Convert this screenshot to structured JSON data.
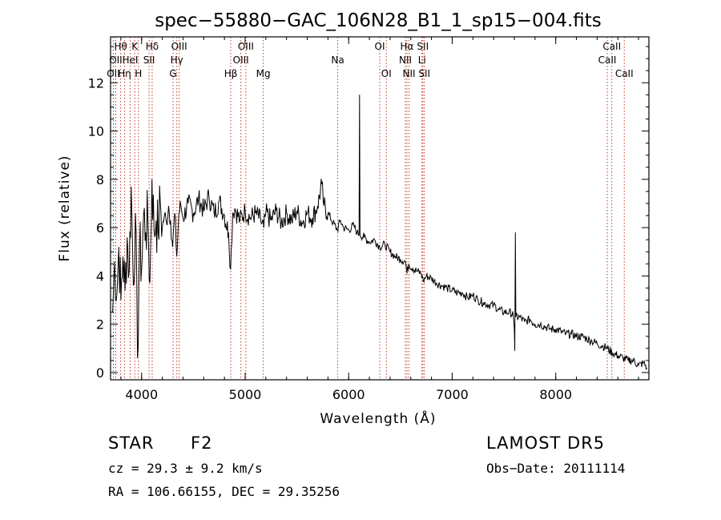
{
  "chart_data": {
    "type": "line",
    "title": "spec−55880−GAC_106N28_B1_1_sp15−004.fits",
    "xlabel": "Wavelength (Å)",
    "ylabel": "Flux (relative)",
    "xlim": [
      3700,
      8900
    ],
    "ylim": [
      -0.3,
      13.9
    ],
    "xticks": [
      4000,
      5000,
      6000,
      7000,
      8000
    ],
    "yticks": [
      0,
      2,
      4,
      6,
      8,
      10,
      12
    ],
    "series": [
      {
        "values_from": "wavelength",
        "points": [
          [
            3720,
            2.5
          ],
          [
            3740,
            4.6
          ],
          [
            3760,
            3.2
          ],
          [
            3780,
            5.2
          ],
          [
            3800,
            3.0
          ],
          [
            3820,
            4.8
          ],
          [
            3840,
            3.4
          ],
          [
            3860,
            5.6
          ],
          [
            3880,
            4.2
          ],
          [
            3900,
            7.7
          ],
          [
            3920,
            3.6
          ],
          [
            3940,
            6.6
          ],
          [
            3960,
            0.6
          ],
          [
            3980,
            5.3
          ],
          [
            4000,
            4.3
          ],
          [
            4020,
            6.6
          ],
          [
            4040,
            5.8
          ],
          [
            4060,
            6.4
          ],
          [
            4080,
            3.7
          ],
          [
            4100,
            8.0
          ],
          [
            4120,
            5.9
          ],
          [
            4140,
            6.3
          ],
          [
            4160,
            5.8
          ],
          [
            4180,
            7.1
          ],
          [
            4200,
            6.0
          ],
          [
            4220,
            6.5
          ],
          [
            4240,
            6.2
          ],
          [
            4260,
            6.9
          ],
          [
            4280,
            6.3
          ],
          [
            4300,
            5.2
          ],
          [
            4320,
            6.6
          ],
          [
            4340,
            4.8
          ],
          [
            4360,
            6.6
          ],
          [
            4380,
            6.9
          ],
          [
            4400,
            6.4
          ],
          [
            4450,
            7.0
          ],
          [
            4500,
            6.6
          ],
          [
            4550,
            7.2
          ],
          [
            4600,
            6.7
          ],
          [
            4650,
            7.3
          ],
          [
            4700,
            6.6
          ],
          [
            4750,
            7.1
          ],
          [
            4800,
            6.5
          ],
          [
            4840,
            5.8
          ],
          [
            4860,
            4.3
          ],
          [
            4880,
            6.6
          ],
          [
            4900,
            6.8
          ],
          [
            4950,
            6.3
          ],
          [
            5000,
            6.7
          ],
          [
            5050,
            6.4
          ],
          [
            5100,
            6.6
          ],
          [
            5150,
            6.3
          ],
          [
            5180,
            6.0
          ],
          [
            5200,
            6.6
          ],
          [
            5250,
            6.3
          ],
          [
            5300,
            6.7
          ],
          [
            5350,
            6.2
          ],
          [
            5400,
            6.6
          ],
          [
            5450,
            6.3
          ],
          [
            5500,
            6.7
          ],
          [
            5550,
            6.2
          ],
          [
            5600,
            6.6
          ],
          [
            5650,
            6.4
          ],
          [
            5700,
            6.9
          ],
          [
            5740,
            7.8
          ],
          [
            5760,
            6.9
          ],
          [
            5800,
            6.6
          ],
          [
            5850,
            6.2
          ],
          [
            5890,
            5.9
          ],
          [
            5920,
            6.3
          ],
          [
            5950,
            6.0
          ],
          [
            6000,
            5.9
          ],
          [
            6050,
            6.1
          ],
          [
            6080,
            5.8
          ],
          [
            6100,
            5.7
          ],
          [
            6105,
            11.5
          ],
          [
            6110,
            5.7
          ],
          [
            6150,
            5.6
          ],
          [
            6200,
            5.4
          ],
          [
            6250,
            5.5
          ],
          [
            6300,
            5.2
          ],
          [
            6350,
            5.3
          ],
          [
            6400,
            5.0
          ],
          [
            6450,
            4.8
          ],
          [
            6500,
            4.7
          ],
          [
            6550,
            4.6
          ],
          [
            6563,
            4.1
          ],
          [
            6580,
            4.5
          ],
          [
            6620,
            4.3
          ],
          [
            6660,
            4.2
          ],
          [
            6700,
            4.1
          ],
          [
            6720,
            3.8
          ],
          [
            6750,
            4.0
          ],
          [
            6800,
            3.9
          ],
          [
            6850,
            3.7
          ],
          [
            6900,
            3.6
          ],
          [
            6950,
            3.5
          ],
          [
            7000,
            3.4
          ],
          [
            7050,
            3.3
          ],
          [
            7100,
            3.3
          ],
          [
            7150,
            3.1
          ],
          [
            7200,
            3.2
          ],
          [
            7250,
            3.0
          ],
          [
            7300,
            2.9
          ],
          [
            7350,
            2.8
          ],
          [
            7400,
            2.8
          ],
          [
            7450,
            2.6
          ],
          [
            7500,
            2.5
          ],
          [
            7550,
            2.5
          ],
          [
            7590,
            2.4
          ],
          [
            7600,
            1.8
          ],
          [
            7605,
            0.9
          ],
          [
            7610,
            5.8
          ],
          [
            7615,
            2.3
          ],
          [
            7650,
            2.3
          ],
          [
            7700,
            2.1
          ],
          [
            7750,
            2.2
          ],
          [
            7800,
            2.0
          ],
          [
            7850,
            2.0
          ],
          [
            7900,
            1.9
          ],
          [
            7950,
            1.8
          ],
          [
            8000,
            1.8
          ],
          [
            8050,
            1.7
          ],
          [
            8100,
            1.6
          ],
          [
            8150,
            1.6
          ],
          [
            8200,
            1.5
          ],
          [
            8250,
            1.5
          ],
          [
            8300,
            1.4
          ],
          [
            8350,
            1.3
          ],
          [
            8400,
            1.2
          ],
          [
            8450,
            1.1
          ],
          [
            8500,
            1.0
          ],
          [
            8550,
            0.8
          ],
          [
            8600,
            0.7
          ],
          [
            8650,
            0.6
          ],
          [
            8700,
            0.5
          ],
          [
            8750,
            0.5
          ],
          [
            8800,
            0.3
          ],
          [
            8850,
            0.4
          ],
          [
            8880,
            0.2
          ]
        ]
      }
    ],
    "lines": [
      {
        "wl": 3727,
        "labels": [
          {
            "text": "OII",
            "row": 2
          }
        ]
      },
      {
        "wl": 3750,
        "labels": [
          {
            "text": "OII",
            "row": 1
          }
        ]
      },
      {
        "wl": 3798,
        "labels": [
          {
            "text": "Hθ",
            "row": 0
          }
        ]
      },
      {
        "wl": 3835,
        "labels": [
          {
            "text": "Hη",
            "row": 2
          }
        ]
      },
      {
        "wl": 3889,
        "labels": [
          {
            "text": "HeI",
            "row": 1
          }
        ]
      },
      {
        "wl": 3934,
        "labels": [
          {
            "text": "K",
            "row": 0
          }
        ]
      },
      {
        "wl": 3969,
        "labels": [
          {
            "text": "H",
            "row": 2
          }
        ]
      },
      {
        "wl": 4072,
        "labels": [
          {
            "text": "SII",
            "row": 1
          }
        ]
      },
      {
        "wl": 4102,
        "labels": [
          {
            "text": "Hδ",
            "row": 0
          }
        ]
      },
      {
        "wl": 4304,
        "labels": [
          {
            "text": "G",
            "row": 2
          }
        ]
      },
      {
        "wl": 4340,
        "labels": [
          {
            "text": "Hγ",
            "row": 1
          }
        ]
      },
      {
        "wl": 4363,
        "labels": [
          {
            "text": "OIII",
            "row": 0
          }
        ]
      },
      {
        "wl": 4861,
        "labels": [
          {
            "text": "Hβ",
            "row": 2
          }
        ]
      },
      {
        "wl": 4959,
        "labels": [
          {
            "text": "OIII",
            "row": 1
          }
        ]
      },
      {
        "wl": 5007,
        "labels": [
          {
            "text": "OIII",
            "row": 0
          }
        ]
      },
      {
        "wl": 5175,
        "labels": [
          {
            "text": "Mg",
            "row": 2
          }
        ]
      },
      {
        "wl": 5894,
        "labels": [
          {
            "text": "Na",
            "row": 1
          }
        ]
      },
      {
        "wl": 6300,
        "labels": [
          {
            "text": "OI",
            "row": 0
          }
        ]
      },
      {
        "wl": 6364,
        "labels": [
          {
            "text": "OI",
            "row": 2
          }
        ]
      },
      {
        "wl": 6548,
        "labels": [
          {
            "text": "NII",
            "row": 1
          }
        ]
      },
      {
        "wl": 6563,
        "labels": [
          {
            "text": "Hα",
            "row": 0
          }
        ]
      },
      {
        "wl": 6583,
        "labels": [
          {
            "text": "NII",
            "row": 2
          }
        ]
      },
      {
        "wl": 6708,
        "labels": [
          {
            "text": "Li",
            "row": 1
          }
        ]
      },
      {
        "wl": 6716,
        "labels": [
          {
            "text": "SII",
            "row": 0
          }
        ]
      },
      {
        "wl": 6731,
        "labels": [
          {
            "text": "SII",
            "row": 2
          }
        ]
      },
      {
        "wl": 8498,
        "labels": [
          {
            "text": "CaII",
            "row": 1
          }
        ]
      },
      {
        "wl": 8542,
        "labels": [
          {
            "text": "CaII",
            "row": 0
          }
        ]
      },
      {
        "wl": 8662,
        "labels": [
          {
            "text": "CaII",
            "row": 2
          }
        ]
      }
    ]
  },
  "info": {
    "class": "STAR",
    "subclass": "F2",
    "survey": "LAMOST DR5",
    "redshift": "cz = 29.3 ± 9.2 km/s",
    "obs_date": "Obs−Date: 20111114",
    "coords": "RA = 106.66155, DEC =  29.35256"
  },
  "colors": {
    "spectrum": "#000000",
    "line_marker": "#c0392b",
    "axes": "#000000"
  }
}
